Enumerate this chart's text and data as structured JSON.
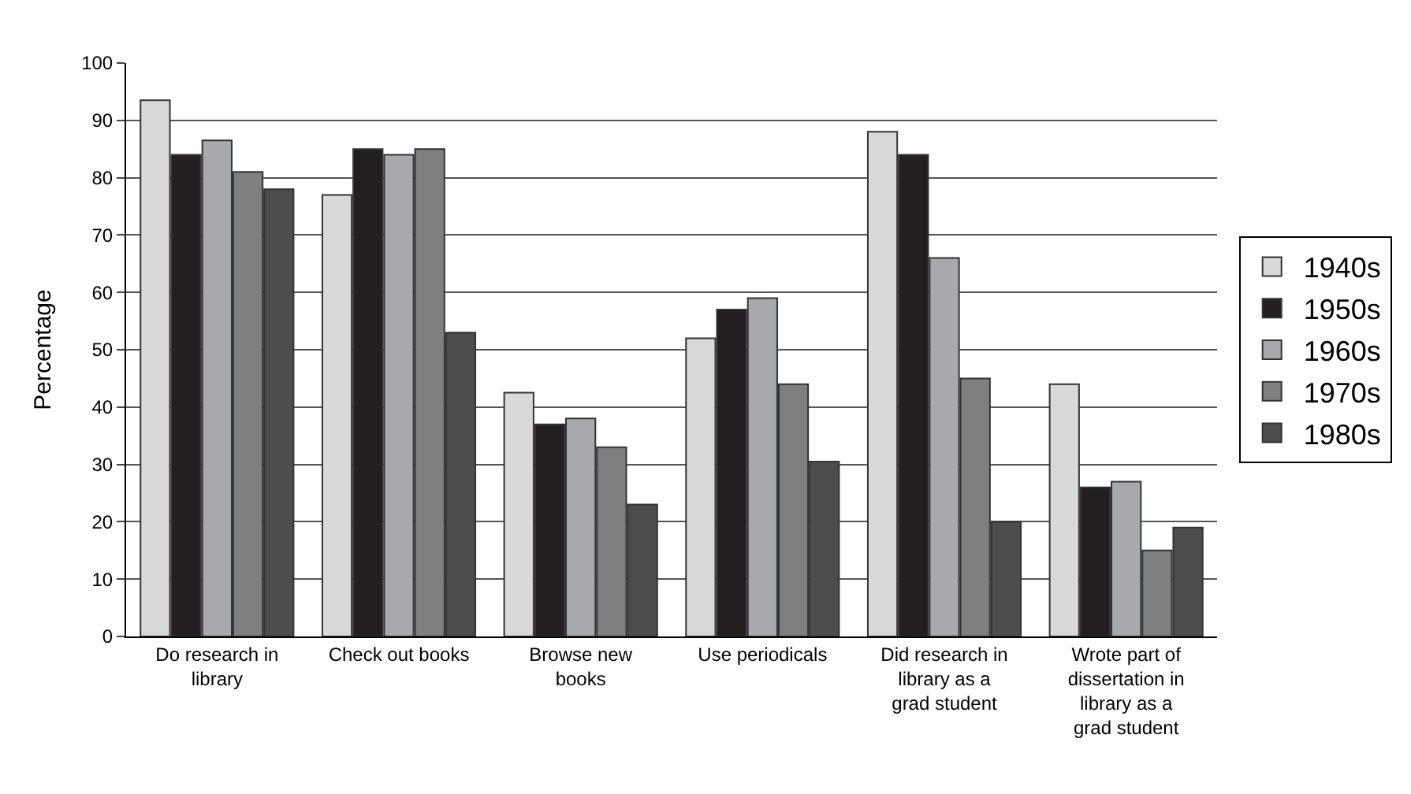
{
  "chart_data": {
    "type": "bar",
    "ylabel": "Percentage",
    "categories": [
      "Do research in library",
      "Check out books",
      "Browse new books",
      "Use periodicals",
      "Did research in library as a grad student",
      "Wrote part of dissertation in library as a grad student"
    ],
    "series": [
      {
        "name": "1940s",
        "color": "#d9d9d9",
        "values": [
          93.5,
          77,
          42.5,
          52,
          88,
          44
        ]
      },
      {
        "name": "1950s",
        "color": "#231f20",
        "values": [
          84,
          85,
          37,
          57,
          84,
          26
        ]
      },
      {
        "name": "1960s",
        "color": "#a7a9ac",
        "values": [
          86.5,
          84,
          38,
          59,
          66,
          27
        ]
      },
      {
        "name": "1970s",
        "color": "#7f7f7f",
        "values": [
          81,
          85,
          33,
          44,
          45,
          15
        ]
      },
      {
        "name": "1980s",
        "color": "#4d4d4d",
        "values": [
          78,
          53,
          23,
          30.5,
          20,
          19
        ]
      }
    ],
    "ylim": [
      0,
      100
    ],
    "yticks": [
      0,
      10,
      20,
      30,
      40,
      50,
      60,
      70,
      80,
      90,
      100
    ],
    "grid": "y",
    "legend": "right"
  }
}
